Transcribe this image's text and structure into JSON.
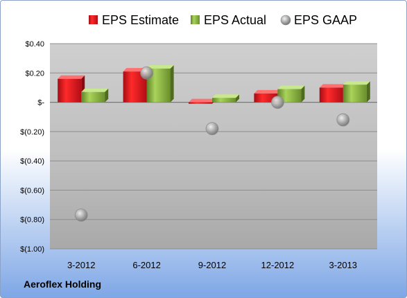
{
  "chart_data": {
    "type": "bar",
    "title": "",
    "xlabel": "",
    "ylabel": "",
    "categories": [
      "3-2012",
      "6-2012",
      "9-2012",
      "12-2012",
      "3-2013"
    ],
    "series": [
      {
        "name": "EPS Estimate",
        "kind": "bar",
        "color": "#d8121e",
        "values": [
          0.16,
          0.21,
          -0.01,
          0.06,
          0.1
        ]
      },
      {
        "name": "EPS Actual",
        "kind": "bar",
        "color": "#86ad3c",
        "values": [
          0.07,
          0.23,
          0.03,
          0.09,
          0.12
        ]
      },
      {
        "name": "EPS GAAP",
        "kind": "marker",
        "color": "#a7a7a7",
        "values": [
          -0.77,
          0.2,
          -0.18,
          0.0,
          -0.12
        ]
      }
    ],
    "ylim": [
      -1.0,
      0.4
    ],
    "yticks": [
      0.4,
      0.2,
      0.0,
      -0.2,
      -0.4,
      -0.6,
      -0.8,
      -1.0
    ],
    "ytick_labels": [
      "$0.40",
      "$0.20",
      "$-",
      "$(0.20)",
      "$(0.40)",
      "$(0.60)",
      "$(0.80)",
      "$(1.00)"
    ],
    "grid": true,
    "legend_position": "top",
    "plot_background": "#c8c8c8"
  },
  "footer": {
    "company": "Aeroflex Holding"
  }
}
